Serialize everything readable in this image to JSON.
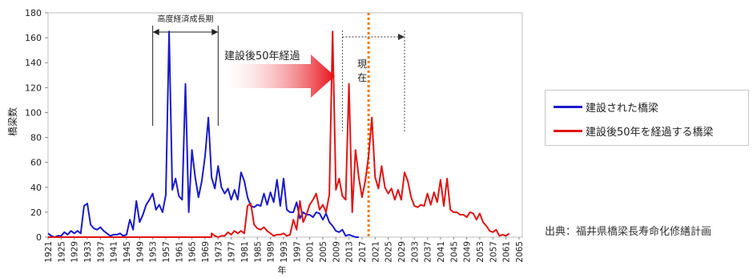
{
  "chart_data": {
    "type": "line",
    "title": "",
    "xlabel": "年",
    "ylabel": "橋梁数",
    "x_start": 1921,
    "x_end": 2066,
    "ylim": [
      0,
      180
    ],
    "y_ticks": [
      0,
      20,
      40,
      60,
      80,
      100,
      120,
      140,
      160,
      180
    ],
    "x_tick_labels": [
      "1921",
      "1925",
      "1929",
      "1933",
      "1937",
      "1941",
      "1945",
      "1949",
      "1953",
      "1957",
      "1961",
      "1965",
      "1969",
      "1973",
      "1977",
      "1981",
      "1985",
      "1989",
      "1993",
      "1997",
      "2001",
      "2005",
      "2009",
      "2013",
      "2017",
      "2021",
      "2025",
      "2029",
      "2033",
      "2037",
      "2041",
      "2045",
      "2049",
      "2053",
      "2057",
      "2061",
      "2065"
    ],
    "grid": false,
    "legend_position": "right",
    "series": [
      {
        "name": "建設された橋梁",
        "color": "#1a1acc",
        "x_start": 1921,
        "values": [
          3,
          1,
          0,
          1,
          1,
          4,
          2,
          5,
          3,
          5,
          3,
          25,
          27,
          10,
          7,
          6,
          8,
          5,
          3,
          1,
          2,
          2,
          3,
          1,
          2,
          14,
          6,
          29,
          12,
          18,
          26,
          30,
          35,
          22,
          26,
          20,
          34,
          165,
          38,
          47,
          33,
          30,
          123,
          20,
          70,
          48,
          32,
          45,
          65,
          96,
          48,
          39,
          57,
          40,
          35,
          39,
          30,
          38,
          30,
          52,
          45,
          32,
          25,
          24,
          26,
          25,
          35,
          26,
          36,
          28,
          46,
          25,
          47,
          22,
          20,
          20,
          28,
          15,
          20,
          18,
          18,
          16,
          20,
          19,
          14,
          19,
          12,
          9,
          5,
          4,
          6,
          1,
          2,
          1,
          0,
          0
        ]
      },
      {
        "name": "建設後50年を経過する橋梁",
        "color": "#e01414",
        "x_start": 1971,
        "values": [
          3,
          1,
          0,
          1,
          1,
          4,
          2,
          5,
          3,
          5,
          3,
          25,
          27,
          10,
          7,
          6,
          8,
          5,
          3,
          1,
          2,
          2,
          3,
          1,
          2,
          14,
          6,
          29,
          12,
          18,
          26,
          30,
          35,
          22,
          26,
          20,
          34,
          165,
          38,
          47,
          33,
          30,
          123,
          20,
          70,
          48,
          32,
          45,
          65,
          96,
          48,
          39,
          57,
          40,
          35,
          39,
          30,
          38,
          30,
          52,
          45,
          32,
          25,
          24,
          26,
          25,
          35,
          26,
          36,
          28,
          46,
          25,
          47,
          22,
          20,
          20,
          18,
          18,
          16,
          20,
          19,
          14,
          19,
          12,
          9,
          5,
          4,
          6,
          1,
          2,
          1,
          3
        ]
      }
    ],
    "annotations": {
      "high_growth_label": "高度経済成長期",
      "high_growth_range": [
        1953,
        1973
      ],
      "elapsed_label": "建設後50年経過",
      "current_label_line1": "現",
      "current_label_line2": "在",
      "current_year": 2019,
      "bracket_range": [
        2011,
        2030
      ]
    }
  },
  "legend": {
    "item1": "建設された橋梁",
    "item2": "建設後50年を経過する橋梁"
  },
  "source_note": "出典：福井県橋梁長寿命化修繕計画"
}
